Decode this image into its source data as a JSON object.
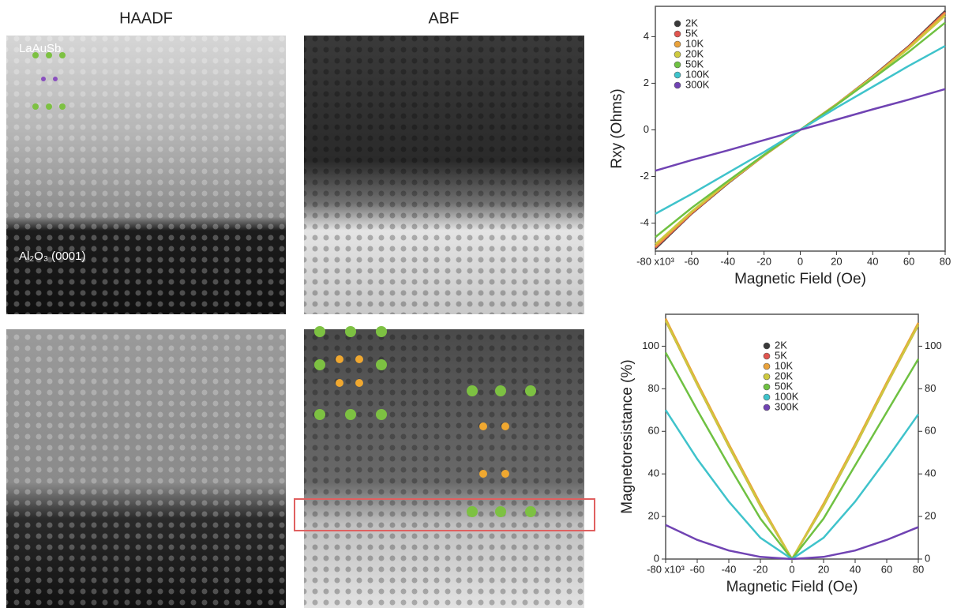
{
  "panels": [
    {
      "title": "HAADF",
      "labels": [
        "LaAuSb",
        "Al₂O₃ (0001)"
      ]
    },
    {
      "title": "ABF"
    }
  ],
  "chart_data": [
    {
      "type": "line",
      "xlabel": "Magnetic Field (Oe)",
      "ylabel": "Rxy (Ohms)",
      "legend": "upper left",
      "x": [
        -80000,
        -60000,
        -40000,
        -20000,
        0,
        20000,
        40000,
        60000,
        80000
      ],
      "xlim": [
        -80000,
        80000
      ],
      "xticks": [
        {
          "value": -80000,
          "label": "-80 x10³"
        },
        {
          "value": -60000,
          "label": "-60"
        },
        {
          "value": -40000,
          "label": "-40"
        },
        {
          "value": -20000,
          "label": "-20"
        },
        0,
        {
          "value": 20000,
          "label": "20"
        },
        {
          "value": 40000,
          "label": "40"
        },
        {
          "value": 60000,
          "label": "60"
        },
        {
          "value": 80000,
          "label": "80"
        }
      ],
      "ylim": [
        -5.2,
        5.3
      ],
      "yticks": [
        -4,
        -2,
        0,
        2,
        4
      ],
      "series": [
        {
          "name": "2K",
          "color": "#3a3a3a",
          "values": [
            -5.1,
            -3.6,
            -2.3,
            -1.1,
            0,
            1.1,
            2.3,
            3.6,
            5.1
          ]
        },
        {
          "name": "5K",
          "color": "#e0554f",
          "values": [
            -5.05,
            -3.58,
            -2.28,
            -1.1,
            0,
            1.1,
            2.28,
            3.58,
            5.05
          ]
        },
        {
          "name": "10K",
          "color": "#e9a23b",
          "values": [
            -5.0,
            -3.55,
            -2.27,
            -1.1,
            0,
            1.1,
            2.27,
            3.55,
            5.0
          ]
        },
        {
          "name": "20K",
          "color": "#cdc93f",
          "values": [
            -4.9,
            -3.5,
            -2.25,
            -1.08,
            0,
            1.08,
            2.25,
            3.5,
            4.9
          ]
        },
        {
          "name": "50K",
          "color": "#6fc142",
          "values": [
            -4.6,
            -3.35,
            -2.2,
            -1.07,
            0,
            1.07,
            2.2,
            3.35,
            4.6
          ]
        },
        {
          "name": "100K",
          "color": "#3fc3cb",
          "values": [
            -3.6,
            -2.75,
            -1.85,
            -0.95,
            0,
            0.95,
            1.85,
            2.75,
            3.6
          ]
        },
        {
          "name": "300K",
          "color": "#7043b3",
          "values": [
            -1.75,
            -1.3,
            -0.88,
            -0.44,
            0,
            0.44,
            0.88,
            1.3,
            1.75
          ]
        }
      ]
    },
    {
      "type": "line",
      "xlabel": "Magnetic Field (Oe)",
      "ylabel": "Magnetoresistance (%)",
      "legend": "upper center",
      "x": [
        -80000,
        -60000,
        -40000,
        -20000,
        0,
        20000,
        40000,
        60000,
        80000
      ],
      "xlim": [
        -80000,
        80000
      ],
      "xticks": [
        {
          "value": -80000,
          "label": "-80 x10³"
        },
        {
          "value": -60000,
          "label": "-60"
        },
        {
          "value": -40000,
          "label": "-40"
        },
        {
          "value": -20000,
          "label": "-20"
        },
        0,
        {
          "value": 20000,
          "label": "20"
        },
        {
          "value": 40000,
          "label": "40"
        },
        {
          "value": 60000,
          "label": "60"
        },
        {
          "value": 80000,
          "label": "80"
        }
      ],
      "ylim": [
        0,
        115
      ],
      "yticks": [
        0,
        20,
        40,
        60,
        80,
        100
      ],
      "y2lim": [
        0,
        115
      ],
      "y2ticks": [
        0,
        20,
        40,
        60,
        80,
        100
      ],
      "series": [
        {
          "name": "2K",
          "color": "#3a3a3a",
          "values": [
            112,
            82,
            53,
            25,
            0,
            25,
            53,
            82,
            110
          ]
        },
        {
          "name": "5K",
          "color": "#e0554f",
          "values": [
            112,
            82,
            53,
            25,
            0,
            25,
            53,
            82,
            110
          ]
        },
        {
          "name": "10K",
          "color": "#e9a23b",
          "values": [
            113,
            83,
            54,
            26,
            0,
            26,
            54,
            83,
            111
          ]
        },
        {
          "name": "20K",
          "color": "#cdc93f",
          "values": [
            112,
            82,
            53,
            25,
            0,
            25,
            53,
            82,
            110
          ]
        },
        {
          "name": "50K",
          "color": "#6fc142",
          "values": [
            97,
            70,
            44,
            19,
            0,
            19,
            44,
            69,
            94
          ]
        },
        {
          "name": "100K",
          "color": "#3fc3cb",
          "values": [
            70,
            47,
            27,
            10,
            0,
            10,
            27,
            47,
            68
          ]
        },
        {
          "name": "300K",
          "color": "#7043b3",
          "values": [
            16,
            9,
            4,
            1,
            0,
            1,
            4,
            9,
            15
          ]
        }
      ]
    }
  ]
}
